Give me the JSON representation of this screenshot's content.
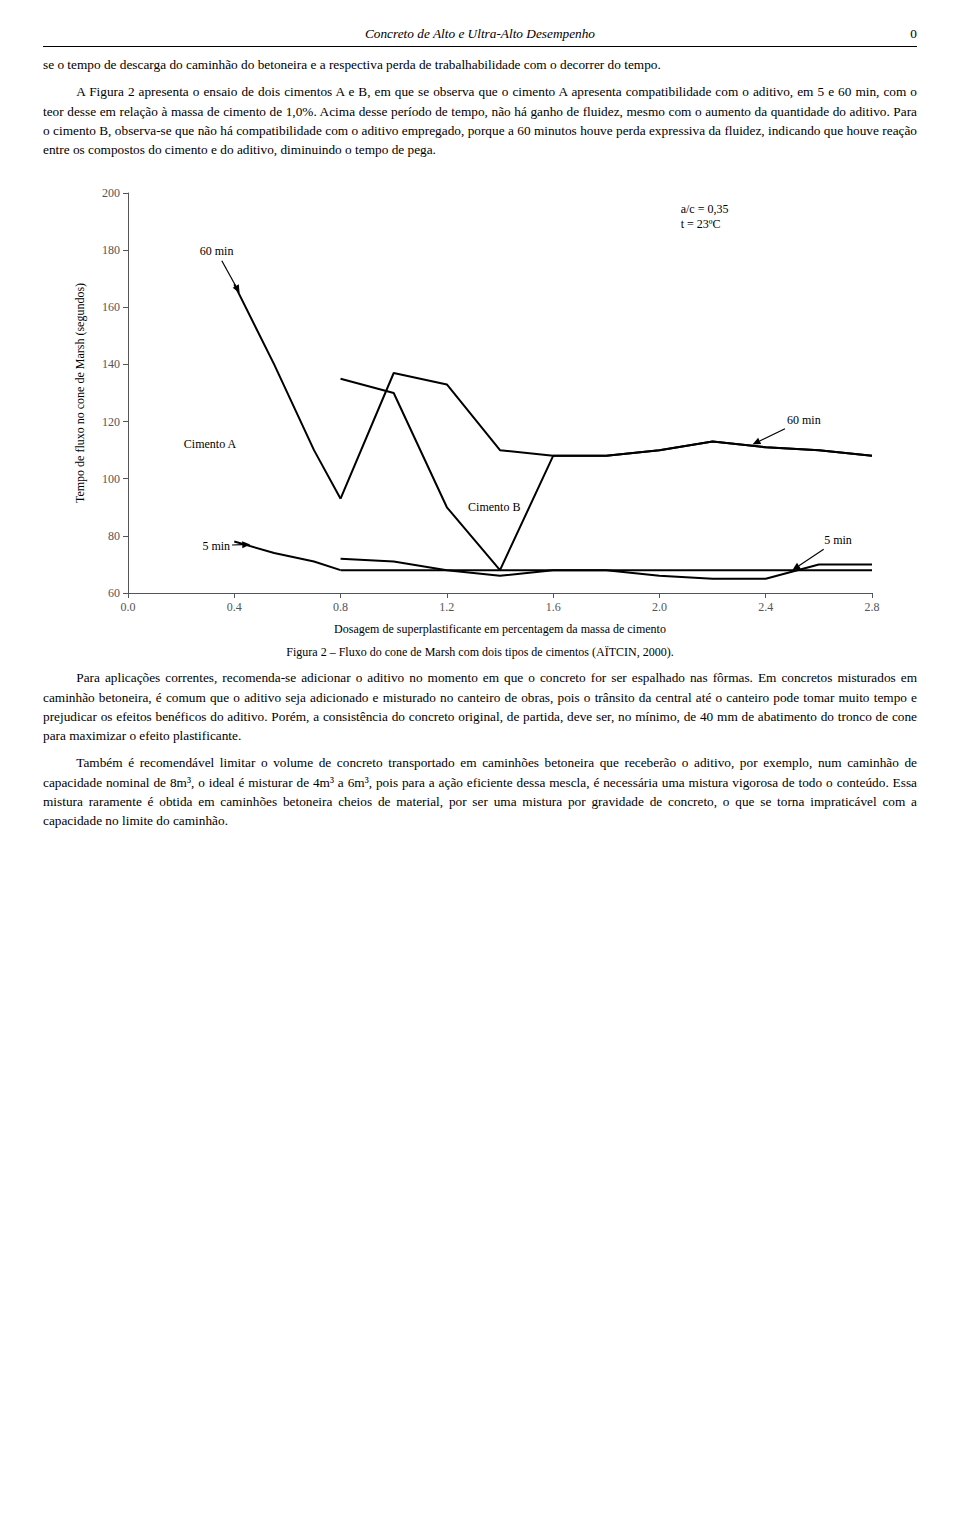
{
  "page_title": "Concreto de Alto e Ultra-Alto Desempenho",
  "page_number": "0",
  "paragraphs_before": [
    "se o tempo de descarga do caminhão do betoneira e a respectiva perda de trabalhabilidade com o decorrer do tempo.",
    "A Figura 2 apresenta o ensaio de dois cimentos A e B, em que se observa que o cimento A apresenta compatibilidade com o aditivo, em 5 e 60 min, com o teor desse em relação à massa de cimento de 1,0%. Acima desse período de tempo, não há ganho de fluidez, mesmo com o aumento da quantidade do aditivo. Para o cimento B, observa-se que não há compatibilidade com o aditivo empregado, porque a 60 minutos houve perda expressiva da fluidez, indicando que houve reação entre os compostos do cimento e do aditivo, diminuindo o tempo de pega."
  ],
  "paragraphs_after": [
    "Para aplicações correntes, recomenda-se adicionar o aditivo no momento em que o concreto for ser espalhado nas fôrmas. Em concretos misturados em caminhão betoneira, é comum que o aditivo seja adicionado e misturado no canteiro de obras, pois o trânsito da central até o canteiro pode tomar muito tempo e prejudicar os efeitos benéficos do aditivo. Porém, a consistência do concreto original, de partida, deve ser, no mínimo, de 40 mm de abatimento do tronco de cone para maximizar o efeito plastificante.",
    "Também é recomendável limitar o volume de concreto transportado em caminhões betoneira que receberão o aditivo, por exemplo, num caminhão de capacidade nominal de 8m³, o ideal é misturar de 4m³ a 6m³, pois para a ação eficiente dessa mescla, é necessária uma mistura vigorosa de todo o conteúdo. Essa mistura raramente é obtida em caminhões betoneira cheios de material, por ser uma mistura por gravidade de concreto, o que se torna impraticável com a capacidade no limite do caminhão."
  ],
  "chart_data": {
    "type": "line",
    "caption": "Figura 2 – Fluxo do cone de Marsh com dois tipos de cimentos (AÏTCIN, 2000).",
    "xlabel": "Dosagem de superplastificante em percentagem da massa de cimento",
    "ylabel": "Tempo de fluxo no cone de Marsh (segundos)",
    "xlim": [
      0,
      2.8
    ],
    "ylim": [
      60,
      200
    ],
    "xticks": [
      {
        "value": 0,
        "label": "0.0"
      },
      0.4,
      0.8,
      1.2,
      1.6,
      {
        "value": 2.0,
        "label": "2.0"
      },
      2.4,
      2.8
    ],
    "yticks": [
      60,
      80,
      100,
      120,
      140,
      160,
      180,
      200
    ],
    "grid": false,
    "series": [
      {
        "color": "#000000",
        "x": [
          0.4,
          0.55,
          0.7,
          0.8
        ],
        "values": [
          168,
          140,
          110,
          93
        ]
      },
      {
        "color": "#000000",
        "x": [
          0.4,
          0.55,
          0.7,
          0.8
        ],
        "values": [
          78,
          74,
          71,
          68
        ]
      },
      {
        "color": "#000000",
        "x": [
          0.8,
          1.0,
          1.2,
          1.4,
          1.6,
          1.8,
          2.0,
          2.2,
          2.4,
          2.6,
          2.8
        ],
        "values": [
          93,
          137,
          133,
          110,
          108,
          108,
          110,
          113,
          111,
          110,
          108
        ]
      },
      {
        "color": "#000000",
        "x": [
          0.8,
          1.0,
          1.2,
          1.4,
          1.6,
          1.8,
          2.0,
          2.2,
          2.4,
          2.6,
          2.8
        ],
        "values": [
          68,
          68,
          68,
          68,
          68,
          68,
          68,
          68,
          68,
          68,
          68
        ]
      },
      {
        "color": "#000000",
        "x": [
          0.8,
          1.0,
          1.2,
          1.4,
          1.6,
          1.8,
          2.0,
          2.2,
          2.4,
          2.6,
          2.8
        ],
        "values": [
          135,
          130,
          90,
          68,
          108,
          108,
          110,
          113,
          111,
          110,
          108
        ]
      },
      {
        "color": "#000000",
        "x": [
          0.8,
          1.0,
          1.2,
          1.4,
          1.6,
          1.8,
          2.0,
          2.2,
          2.4,
          2.6,
          2.8
        ],
        "values": [
          72,
          71,
          68,
          66,
          68,
          68,
          66,
          65,
          65,
          70,
          70
        ]
      }
    ],
    "annotations": [
      {
        "text": "a/c = 0,35\nt = 23ºC",
        "x": 2.08,
        "y": 197
      },
      {
        "text": "60 min",
        "x": 0.27,
        "y": 177,
        "arrow_to": [
          0.42,
          165
        ]
      },
      {
        "text": "Cimento A",
        "x": 0.21,
        "y": 112
      },
      {
        "text": "5 min",
        "x": 0.28,
        "y": 74,
        "arrow_to": [
          0.46,
          77
        ]
      },
      {
        "text": "Cimento B",
        "x": 1.28,
        "y": 90
      },
      {
        "text": "60 min",
        "x": 2.48,
        "y": 118,
        "arrow_to": [
          2.35,
          112
        ]
      },
      {
        "text": "5 min",
        "x": 2.62,
        "y": 76,
        "arrow_to": [
          2.5,
          68
        ]
      }
    ]
  }
}
